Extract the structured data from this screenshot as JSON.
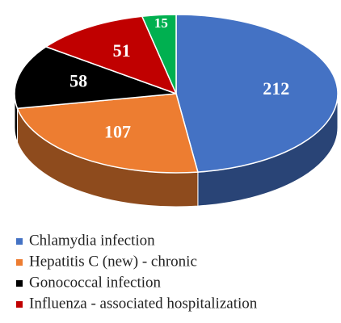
{
  "chart_data": {
    "type": "pie",
    "categories": [
      "Chlamydia infection",
      "Hepatitis C (new) - chronic",
      "Gonococcal infection",
      "Influenza - associated hospitalization",
      null
    ],
    "values": [
      212,
      107,
      58,
      51,
      15
    ],
    "colors": [
      "#4472c4",
      "#ed7d31",
      "#000000",
      "#c00000",
      "#00b050"
    ],
    "legend": "bottom"
  }
}
